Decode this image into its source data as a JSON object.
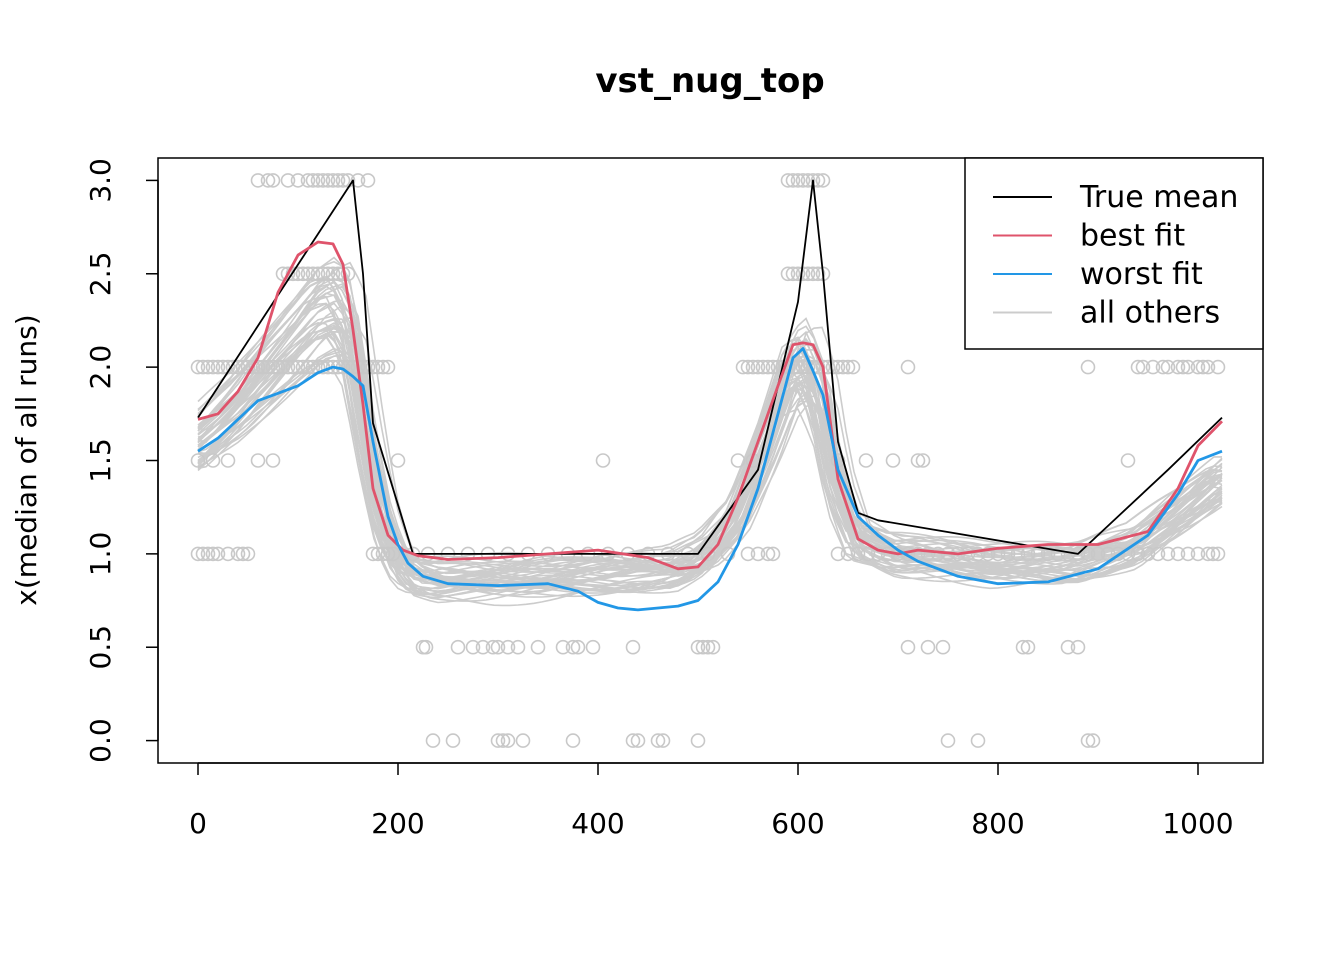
{
  "chart_data": {
    "type": "line",
    "title": "vst_nug_top",
    "xlabel": "",
    "ylabel": "x(median of all runs)",
    "xlim": [
      -40,
      1065
    ],
    "ylim": [
      -0.12,
      3.12
    ],
    "x_ticks": [
      0,
      200,
      400,
      600,
      800,
      1000
    ],
    "x_tick_labels": [
      "0",
      "200",
      "400",
      "600",
      "800",
      "1000"
    ],
    "y_ticks": [
      0.0,
      0.5,
      1.0,
      1.5,
      2.0,
      2.5,
      3.0
    ],
    "y_tick_labels": [
      "0.0",
      "0.5",
      "1.0",
      "1.5",
      "2.0",
      "2.5",
      "3.0"
    ],
    "legend_position": "top-right",
    "legend": [
      {
        "label": "True mean",
        "color": "#000000"
      },
      {
        "label": "best fit",
        "color": "#DF536B"
      },
      {
        "label": "worst fit",
        "color": "#2297E6"
      },
      {
        "label": "all others",
        "color": "#CCCCCC"
      }
    ],
    "series": [
      {
        "name": "True mean",
        "color": "#000000",
        "x": [
          0,
          155,
          165,
          175,
          215,
          500,
          560,
          600,
          615,
          625,
          640,
          660,
          680,
          880,
          920,
          970,
          1024
        ],
        "y": [
          1.73,
          3.0,
          2.5,
          1.7,
          1.0,
          1.0,
          1.45,
          2.35,
          3.0,
          2.5,
          1.6,
          1.22,
          1.18,
          1.0,
          1.2,
          1.45,
          1.73
        ]
      },
      {
        "name": "best fit",
        "color": "#DF536B",
        "x": [
          0,
          20,
          40,
          60,
          80,
          100,
          120,
          135,
          145,
          155,
          165,
          175,
          190,
          205,
          220,
          250,
          300,
          350,
          400,
          450,
          480,
          500,
          520,
          540,
          560,
          580,
          595,
          605,
          615,
          625,
          640,
          660,
          680,
          700,
          720,
          760,
          800,
          850,
          900,
          950,
          980,
          1000,
          1024
        ],
        "y": [
          1.72,
          1.75,
          1.87,
          2.05,
          2.4,
          2.6,
          2.67,
          2.66,
          2.55,
          2.2,
          1.8,
          1.35,
          1.1,
          1.02,
          0.99,
          0.97,
          0.98,
          1.0,
          1.02,
          0.98,
          0.92,
          0.93,
          1.05,
          1.3,
          1.6,
          1.9,
          2.12,
          2.13,
          2.12,
          2.0,
          1.4,
          1.08,
          1.02,
          1.0,
          1.02,
          1.0,
          1.03,
          1.05,
          1.05,
          1.12,
          1.35,
          1.58,
          1.71
        ]
      },
      {
        "name": "worst fit",
        "color": "#2297E6",
        "x": [
          0,
          20,
          40,
          60,
          80,
          100,
          120,
          135,
          145,
          155,
          165,
          175,
          190,
          200,
          210,
          225,
          250,
          300,
          350,
          380,
          400,
          420,
          440,
          460,
          480,
          500,
          520,
          540,
          560,
          580,
          595,
          605,
          615,
          625,
          640,
          660,
          680,
          700,
          720,
          760,
          800,
          850,
          900,
          950,
          980,
          1000,
          1024
        ],
        "y": [
          1.55,
          1.62,
          1.72,
          1.82,
          1.86,
          1.9,
          1.97,
          2.0,
          1.99,
          1.95,
          1.9,
          1.6,
          1.2,
          1.05,
          0.95,
          0.88,
          0.84,
          0.83,
          0.84,
          0.8,
          0.74,
          0.71,
          0.7,
          0.71,
          0.72,
          0.75,
          0.85,
          1.05,
          1.35,
          1.75,
          2.05,
          2.1,
          1.98,
          1.85,
          1.45,
          1.2,
          1.1,
          1.02,
          0.96,
          0.88,
          0.84,
          0.85,
          0.92,
          1.1,
          1.32,
          1.5,
          1.55
        ]
      }
    ],
    "others": {
      "name": "all others",
      "color": "#CCCCCC",
      "count": 45,
      "base_x": [
        0,
        40,
        80,
        120,
        140,
        155,
        170,
        185,
        200,
        215,
        240,
        300,
        400,
        480,
        510,
        540,
        570,
        595,
        610,
        625,
        640,
        660,
        700,
        800,
        880,
        940,
        990,
        1024
      ],
      "base_y": [
        1.6,
        1.8,
        2.05,
        2.3,
        2.35,
        2.2,
        1.7,
        1.25,
        1.0,
        0.9,
        0.86,
        0.86,
        0.9,
        0.92,
        1.0,
        1.2,
        1.6,
        2.0,
        2.05,
        1.85,
        1.4,
        1.1,
        1.0,
        0.95,
        0.96,
        1.05,
        1.25,
        1.4
      ]
    },
    "points": [
      [
        0,
        2.0
      ],
      [
        5,
        2.0
      ],
      [
        10,
        2.0
      ],
      [
        15,
        2.0
      ],
      [
        20,
        2.0
      ],
      [
        25,
        2.0
      ],
      [
        30,
        2.0
      ],
      [
        35,
        2.0
      ],
      [
        40,
        2.0
      ],
      [
        45,
        2.0
      ],
      [
        50,
        2.0
      ],
      [
        55,
        2.0
      ],
      [
        60,
        2.0
      ],
      [
        65,
        2.0
      ],
      [
        70,
        2.0
      ],
      [
        75,
        2.0
      ],
      [
        80,
        2.0
      ],
      [
        85,
        2.0
      ],
      [
        90,
        2.0
      ],
      [
        95,
        2.0
      ],
      [
        100,
        2.0
      ],
      [
        105,
        2.0
      ],
      [
        110,
        2.0
      ],
      [
        115,
        2.0
      ],
      [
        120,
        2.0
      ],
      [
        125,
        2.0
      ],
      [
        130,
        2.0
      ],
      [
        135,
        2.0
      ],
      [
        140,
        2.0
      ],
      [
        145,
        2.0
      ],
      [
        150,
        2.0
      ],
      [
        155,
        2.0
      ],
      [
        160,
        2.0
      ],
      [
        165,
        2.0
      ],
      [
        170,
        2.0
      ],
      [
        175,
        2.0
      ],
      [
        180,
        2.0
      ],
      [
        185,
        2.0
      ],
      [
        190,
        2.0
      ],
      [
        0,
        1.0
      ],
      [
        5,
        1.0
      ],
      [
        10,
        1.0
      ],
      [
        15,
        1.0
      ],
      [
        20,
        1.0
      ],
      [
        30,
        1.0
      ],
      [
        40,
        1.0
      ],
      [
        45,
        1.0
      ],
      [
        50,
        1.0
      ],
      [
        0,
        1.5
      ],
      [
        15,
        1.5
      ],
      [
        30,
        1.5
      ],
      [
        60,
        1.5
      ],
      [
        75,
        1.5
      ],
      [
        60,
        3.0
      ],
      [
        70,
        3.0
      ],
      [
        75,
        3.0
      ],
      [
        90,
        3.0
      ],
      [
        100,
        3.0
      ],
      [
        110,
        3.0
      ],
      [
        115,
        3.0
      ],
      [
        120,
        3.0
      ],
      [
        125,
        3.0
      ],
      [
        130,
        3.0
      ],
      [
        135,
        3.0
      ],
      [
        140,
        3.0
      ],
      [
        145,
        3.0
      ],
      [
        150,
        3.0
      ],
      [
        160,
        3.0
      ],
      [
        170,
        3.0
      ],
      [
        85,
        2.5
      ],
      [
        90,
        2.5
      ],
      [
        95,
        2.5
      ],
      [
        100,
        2.5
      ],
      [
        105,
        2.5
      ],
      [
        110,
        2.5
      ],
      [
        115,
        2.5
      ],
      [
        120,
        2.5
      ],
      [
        125,
        2.5
      ],
      [
        130,
        2.5
      ],
      [
        135,
        2.5
      ],
      [
        140,
        2.5
      ],
      [
        145,
        2.5
      ],
      [
        150,
        2.5
      ],
      [
        175,
        1.0
      ],
      [
        180,
        1.0
      ],
      [
        185,
        1.0
      ],
      [
        190,
        1.0
      ],
      [
        195,
        1.0
      ],
      [
        200,
        1.5
      ],
      [
        215,
        1.0
      ],
      [
        230,
        1.0
      ],
      [
        250,
        1.0
      ],
      [
        270,
        1.0
      ],
      [
        290,
        1.0
      ],
      [
        310,
        1.0
      ],
      [
        330,
        1.0
      ],
      [
        350,
        1.0
      ],
      [
        370,
        1.0
      ],
      [
        390,
        1.0
      ],
      [
        410,
        1.0
      ],
      [
        430,
        1.0
      ],
      [
        450,
        1.0
      ],
      [
        470,
        1.0
      ],
      [
        490,
        1.0
      ],
      [
        510,
        1.0
      ],
      [
        530,
        1.0
      ],
      [
        550,
        1.0
      ],
      [
        560,
        1.0
      ],
      [
        570,
        1.0
      ],
      [
        575,
        1.0
      ],
      [
        225,
        0.5
      ],
      [
        228,
        0.5
      ],
      [
        260,
        0.5
      ],
      [
        275,
        0.5
      ],
      [
        285,
        0.5
      ],
      [
        295,
        0.5
      ],
      [
        300,
        0.5
      ],
      [
        310,
        0.5
      ],
      [
        320,
        0.5
      ],
      [
        340,
        0.5
      ],
      [
        365,
        0.5
      ],
      [
        375,
        0.5
      ],
      [
        380,
        0.5
      ],
      [
        395,
        0.5
      ],
      [
        435,
        0.5
      ],
      [
        500,
        0.5
      ],
      [
        505,
        0.5
      ],
      [
        510,
        0.5
      ],
      [
        515,
        0.5
      ],
      [
        235,
        0.0
      ],
      [
        255,
        0.0
      ],
      [
        300,
        0.0
      ],
      [
        305,
        0.0
      ],
      [
        310,
        0.0
      ],
      [
        325,
        0.0
      ],
      [
        375,
        0.0
      ],
      [
        435,
        0.0
      ],
      [
        440,
        0.0
      ],
      [
        460,
        0.0
      ],
      [
        465,
        0.0
      ],
      [
        500,
        0.0
      ],
      [
        405,
        1.5
      ],
      [
        545,
        2.0
      ],
      [
        550,
        2.0
      ],
      [
        555,
        2.0
      ],
      [
        560,
        2.0
      ],
      [
        565,
        2.0
      ],
      [
        570,
        2.0
      ],
      [
        575,
        2.0
      ],
      [
        580,
        2.0
      ],
      [
        585,
        2.0
      ],
      [
        590,
        2.0
      ],
      [
        595,
        2.0
      ],
      [
        600,
        2.0
      ],
      [
        605,
        2.0
      ],
      [
        610,
        2.0
      ],
      [
        615,
        2.0
      ],
      [
        620,
        2.0
      ],
      [
        625,
        2.0
      ],
      [
        630,
        2.0
      ],
      [
        635,
        2.0
      ],
      [
        640,
        2.0
      ],
      [
        645,
        2.0
      ],
      [
        650,
        2.0
      ],
      [
        655,
        2.0
      ],
      [
        540,
        1.5
      ],
      [
        555,
        1.5
      ],
      [
        590,
        3.0
      ],
      [
        595,
        3.0
      ],
      [
        600,
        3.0
      ],
      [
        605,
        3.0
      ],
      [
        610,
        3.0
      ],
      [
        615,
        3.0
      ],
      [
        620,
        3.0
      ],
      [
        625,
        3.0
      ],
      [
        590,
        2.5
      ],
      [
        595,
        2.5
      ],
      [
        600,
        2.5
      ],
      [
        605,
        2.5
      ],
      [
        610,
        2.5
      ],
      [
        615,
        2.5
      ],
      [
        620,
        2.5
      ],
      [
        625,
        2.5
      ],
      [
        640,
        1.0
      ],
      [
        650,
        1.0
      ],
      [
        660,
        1.0
      ],
      [
        670,
        1.0
      ],
      [
        680,
        1.0
      ],
      [
        690,
        1.0
      ],
      [
        700,
        1.0
      ],
      [
        710,
        1.0
      ],
      [
        720,
        1.0
      ],
      [
        730,
        1.0
      ],
      [
        740,
        1.0
      ],
      [
        750,
        1.0
      ],
      [
        760,
        1.0
      ],
      [
        770,
        1.0
      ],
      [
        780,
        1.0
      ],
      [
        790,
        1.0
      ],
      [
        800,
        1.0
      ],
      [
        810,
        1.0
      ],
      [
        820,
        1.0
      ],
      [
        830,
        1.0
      ],
      [
        840,
        1.0
      ],
      [
        850,
        1.0
      ],
      [
        860,
        1.0
      ],
      [
        870,
        1.0
      ],
      [
        880,
        1.0
      ],
      [
        890,
        1.0
      ],
      [
        900,
        1.0
      ],
      [
        910,
        1.0
      ],
      [
        920,
        1.0
      ],
      [
        930,
        1.0
      ],
      [
        940,
        1.0
      ],
      [
        950,
        1.0
      ],
      [
        960,
        1.0
      ],
      [
        970,
        1.0
      ],
      [
        980,
        1.0
      ],
      [
        990,
        1.0
      ],
      [
        1000,
        1.0
      ],
      [
        1010,
        1.0
      ],
      [
        1015,
        1.0
      ],
      [
        1020,
        1.0
      ],
      [
        640,
        1.5
      ],
      [
        668,
        1.5
      ],
      [
        695,
        1.5
      ],
      [
        720,
        1.5
      ],
      [
        725,
        1.5
      ],
      [
        930,
        1.5
      ],
      [
        710,
        2.0
      ],
      [
        890,
        2.0
      ],
      [
        940,
        2.0
      ],
      [
        945,
        2.0
      ],
      [
        955,
        2.0
      ],
      [
        965,
        2.0
      ],
      [
        970,
        2.0
      ],
      [
        980,
        2.0
      ],
      [
        985,
        2.0
      ],
      [
        990,
        2.0
      ],
      [
        1000,
        2.0
      ],
      [
        1005,
        2.0
      ],
      [
        1010,
        2.0
      ],
      [
        1020,
        2.0
      ],
      [
        710,
        0.5
      ],
      [
        730,
        0.5
      ],
      [
        745,
        0.5
      ],
      [
        825,
        0.5
      ],
      [
        830,
        0.5
      ],
      [
        870,
        0.5
      ],
      [
        880,
        0.5
      ],
      [
        750,
        0.0
      ],
      [
        780,
        0.0
      ],
      [
        890,
        0.0
      ],
      [
        895,
        0.0
      ]
    ]
  }
}
